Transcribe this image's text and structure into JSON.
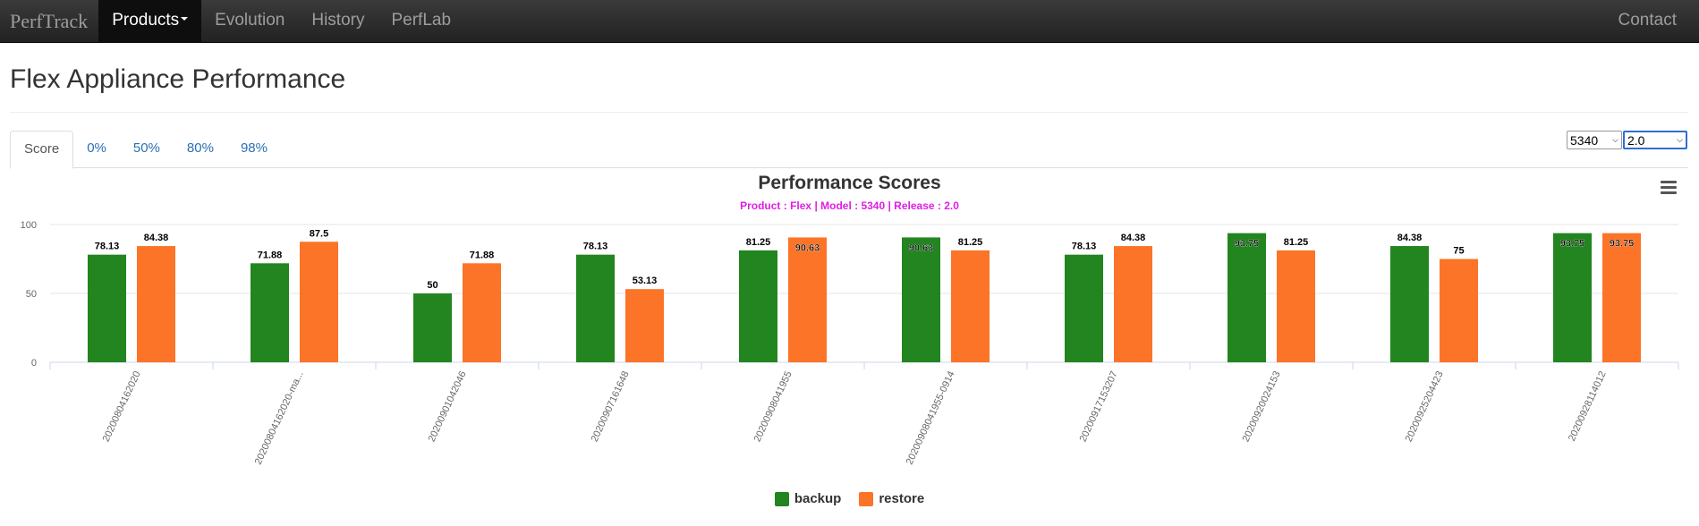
{
  "navbar": {
    "brand": "PerfTrack",
    "items": [
      {
        "label": "Products",
        "active": true,
        "dropdown": true
      },
      {
        "label": "Evolution"
      },
      {
        "label": "History"
      },
      {
        "label": "PerfLab"
      }
    ],
    "right": "Contact"
  },
  "page": {
    "title": "Flex Appliance Performance"
  },
  "tabs": [
    {
      "label": "Score",
      "active": true
    },
    {
      "label": "0%"
    },
    {
      "label": "50%"
    },
    {
      "label": "80%"
    },
    {
      "label": "98%"
    }
  ],
  "selectors": {
    "model": "5340",
    "release": "2.0"
  },
  "colors": {
    "backup": "#22851f",
    "restore": "#fc7427",
    "subtitle": "#e11de6"
  },
  "icons": {
    "menu": "hamburger-menu-icon",
    "caret": "caret-down-icon"
  },
  "chart_data": {
    "type": "bar",
    "title": "Performance Scores",
    "subtitle": "Product : Flex | Model : 5340 | Release : 2.0",
    "categories": [
      "20200804162020",
      "20200804162020-ma...",
      "20200901042046",
      "20200907161648",
      "20200908041955",
      "20200908041955-0914",
      "20200917153207",
      "20200920024153",
      "20200925204423",
      "20200928114012"
    ],
    "series": [
      {
        "name": "backup",
        "color": "#22851f",
        "values": [
          78.13,
          71.88,
          50,
          78.13,
          81.25,
          90.63,
          78.13,
          93.75,
          84.38,
          93.75
        ]
      },
      {
        "name": "restore",
        "color": "#fc7427",
        "values": [
          84.38,
          87.5,
          71.88,
          53.13,
          90.63,
          81.25,
          84.38,
          81.25,
          75,
          93.75
        ]
      }
    ],
    "y_ticks": [
      0,
      50,
      100
    ],
    "ylim": [
      0,
      100
    ],
    "grid": true,
    "legend": "bottom-center"
  }
}
